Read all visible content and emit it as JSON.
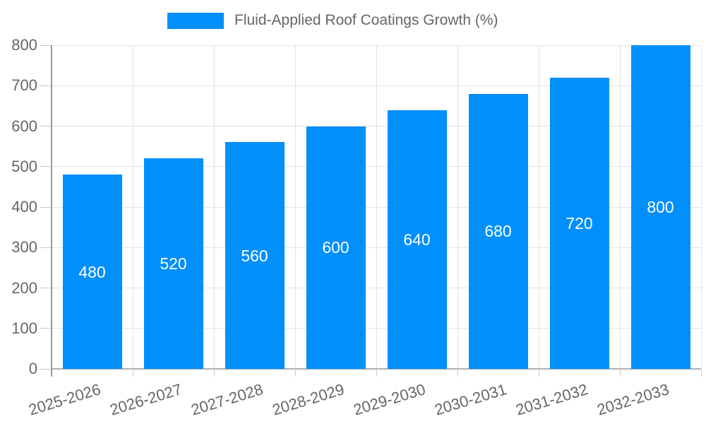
{
  "chart_data": {
    "type": "bar",
    "title": "Fluid-Applied Roof Coatings Growth (%)",
    "categories": [
      "2025-2026",
      "2026-2027",
      "2027-2028",
      "2028-2029",
      "2029-2030",
      "2030-2031",
      "2031-2032",
      "2032-2033"
    ],
    "values": [
      480,
      520,
      560,
      600,
      640,
      680,
      720,
      800
    ],
    "bar_value_labels": [
      "480",
      "520",
      "560",
      "600",
      "640",
      "680",
      "720",
      "800"
    ],
    "xlabel": "",
    "ylabel": "",
    "ylim": [
      0,
      800
    ],
    "y_ticks": [
      0,
      100,
      200,
      300,
      400,
      500,
      600,
      700,
      800
    ],
    "grid": true,
    "legend_position": "top",
    "x_label_rotation_deg": -17,
    "colors": {
      "bar": "#008FFB",
      "bar_label": "#ffffff",
      "axis_text": "#666666",
      "grid": "#e3e3e3",
      "tick": "#c9c9c9",
      "y_axis_line": "#9a9a9a",
      "x_axis_line": "#b0b0b0",
      "background": "#ffffff"
    }
  }
}
